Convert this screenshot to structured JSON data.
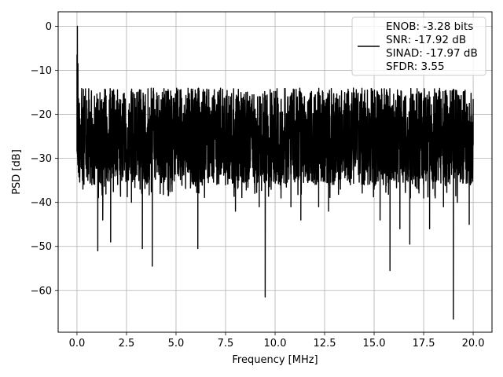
{
  "chart_data": {
    "type": "line",
    "title": "",
    "xlabel": "Frequency [MHz]",
    "ylabel": "PSD [dB]",
    "xlim": [
      -0.95,
      20.95
    ],
    "ylim": [
      -69.5,
      3.3
    ],
    "xticks": [
      0.0,
      2.5,
      5.0,
      7.5,
      10.0,
      12.5,
      15.0,
      17.5,
      20.0
    ],
    "xtick_labels": [
      "0.0",
      "2.5",
      "5.0",
      "7.5",
      "10.0",
      "12.5",
      "15.0",
      "17.5",
      "20.0"
    ],
    "yticks": [
      0,
      -10,
      -20,
      -30,
      -40,
      -50,
      -60
    ],
    "ytick_labels": [
      "0",
      "−10",
      "−20",
      "−30",
      "−40",
      "−50",
      "−60"
    ],
    "grid": true,
    "legend_position": "top-right",
    "line_color": "#000000",
    "series": [
      {
        "legend_lines": [
          "ENOB: -3.28 bits",
          "SNR: -17.92 dB",
          "SINAD: -17.97 dB",
          "SFDR: 3.55"
        ],
        "points": [
          [
            0.0,
            -6.5
          ],
          [
            0.02,
            0.0
          ],
          [
            0.05,
            -8.5
          ],
          [
            0.08,
            -18.0
          ],
          [
            0.1,
            -25.0
          ],
          [
            0.15,
            -21.0
          ],
          [
            0.2,
            -30.0
          ],
          [
            0.3,
            -37.0
          ],
          [
            0.5,
            -28.0
          ],
          [
            0.55,
            -35.0
          ],
          [
            0.6,
            -27.0
          ],
          [
            0.7,
            -31.0
          ],
          [
            0.75,
            -36.0
          ],
          [
            0.8,
            -27.0
          ],
          [
            0.9,
            -32.0
          ],
          [
            1.0,
            -24.0
          ],
          [
            1.05,
            -51.0
          ],
          [
            1.2,
            -27.0
          ],
          [
            1.3,
            -44.0
          ],
          [
            1.4,
            -30.0
          ],
          [
            1.5,
            -25.0
          ],
          [
            1.7,
            -49.0
          ],
          [
            1.85,
            -31.0
          ],
          [
            2.0,
            -23.0
          ],
          [
            2.2,
            -36.0
          ],
          [
            2.5,
            -28.0
          ],
          [
            2.75,
            -40.0
          ],
          [
            3.0,
            -25.0
          ],
          [
            3.2,
            -32.0
          ],
          [
            3.3,
            -50.5
          ],
          [
            3.5,
            -27.0
          ],
          [
            3.75,
            -37.0
          ],
          [
            3.8,
            -54.5
          ],
          [
            4.0,
            -28.0
          ],
          [
            4.2,
            -38.0
          ],
          [
            4.5,
            -28.0
          ],
          [
            4.8,
            -37.5
          ],
          [
            5.0,
            -30.0
          ],
          [
            5.3,
            -33.0
          ],
          [
            5.5,
            -27.0
          ],
          [
            5.8,
            -34.0
          ],
          [
            6.0,
            -27.0
          ],
          [
            6.1,
            -50.5
          ],
          [
            6.3,
            -30.0
          ],
          [
            6.5,
            -26.0
          ],
          [
            6.8,
            -34.0
          ],
          [
            7.0,
            -27.0
          ],
          [
            7.5,
            -36.0
          ],
          [
            7.8,
            -28.0
          ],
          [
            8.0,
            -42.0
          ],
          [
            8.5,
            -33.0
          ],
          [
            9.0,
            -31.0
          ],
          [
            9.2,
            -41.0
          ],
          [
            9.5,
            -61.5
          ],
          [
            9.7,
            -29.0
          ],
          [
            10.0,
            -33.0
          ],
          [
            10.3,
            -39.0
          ],
          [
            10.5,
            -28.0
          ],
          [
            10.8,
            -41.0
          ],
          [
            11.0,
            -30.0
          ],
          [
            11.3,
            -44.0
          ],
          [
            11.5,
            -29.0
          ],
          [
            11.7,
            -35.0
          ],
          [
            12.0,
            -27.0
          ],
          [
            12.2,
            -41.0
          ],
          [
            12.4,
            -30.0
          ],
          [
            12.7,
            -42.0
          ],
          [
            13.0,
            -32.0
          ],
          [
            13.3,
            -37.0
          ],
          [
            13.5,
            -27.0
          ],
          [
            13.8,
            -36.0
          ],
          [
            14.0,
            -28.0
          ],
          [
            14.5,
            -36.0
          ],
          [
            14.8,
            -31.0
          ],
          [
            15.0,
            -37.0
          ],
          [
            15.3,
            -44.0
          ],
          [
            15.5,
            -30.0
          ],
          [
            15.8,
            -55.5
          ],
          [
            16.0,
            -35.0
          ],
          [
            16.3,
            -46.0
          ],
          [
            16.5,
            -29.0
          ],
          [
            16.8,
            -49.5
          ],
          [
            17.0,
            -33.0
          ],
          [
            17.5,
            -39.0
          ],
          [
            17.8,
            -46.0
          ],
          [
            18.0,
            -29.0
          ],
          [
            18.5,
            -41.0
          ],
          [
            18.8,
            -31.0
          ],
          [
            19.0,
            -66.5
          ],
          [
            19.2,
            -40.0
          ],
          [
            19.5,
            -32.0
          ],
          [
            19.8,
            -45.0
          ],
          [
            20.0,
            -27.0
          ]
        ]
      }
    ]
  }
}
